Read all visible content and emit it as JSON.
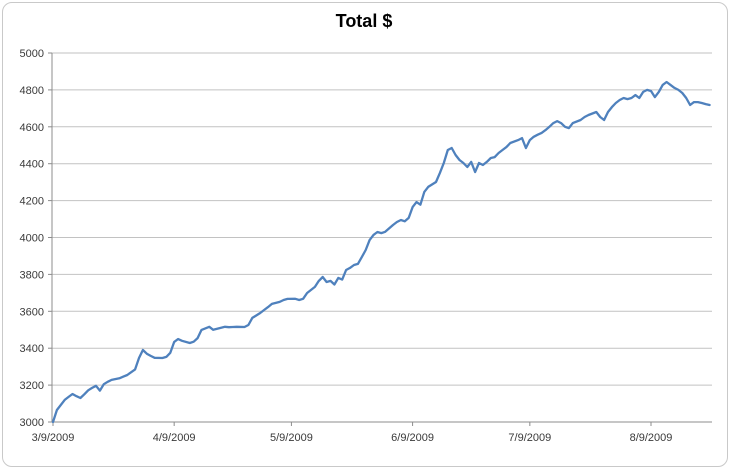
{
  "colors": {
    "line": "#4F81BD",
    "gridline": "#C2C2C2",
    "axis_line": "#8C8C8C",
    "tick_label": "#3A3A3A",
    "title": "#000000",
    "chart_border": "#C9C9C9",
    "background": "#FFFFFF"
  },
  "chart_data": {
    "type": "line",
    "title": "Total $",
    "xlabel": "",
    "ylabel": "",
    "grid": true,
    "legend": "none",
    "y_axis": {
      "min": 3000,
      "max": 5000,
      "step": 200,
      "tick_labels": [
        "3000",
        "3200",
        "3400",
        "3600",
        "3800",
        "4000",
        "4200",
        "4400",
        "4600",
        "4800",
        "5000"
      ]
    },
    "x_axis": {
      "epoch": "3/9/2009",
      "tick_labels": [
        "3/9/2009",
        "4/9/2009",
        "5/9/2009",
        "6/9/2009",
        "7/9/2009",
        "8/9/2009"
      ],
      "last_tick_date": "8/9/2009",
      "end_date": "8/24/2009"
    },
    "series": [
      {
        "name": "Total $",
        "color": "#4F81BD",
        "points": [
          [
            "3/9/2009",
            3000
          ],
          [
            "3/10/2009",
            3065
          ],
          [
            "3/12/2009",
            3120
          ],
          [
            "3/13/2009",
            3136
          ],
          [
            "3/14/2009",
            3152
          ],
          [
            "3/15/2009",
            3140
          ],
          [
            "3/16/2009",
            3130
          ],
          [
            "3/17/2009",
            3150
          ],
          [
            "3/18/2009",
            3172
          ],
          [
            "3/19/2009",
            3185
          ],
          [
            "3/20/2009",
            3196
          ],
          [
            "3/21/2009",
            3170
          ],
          [
            "3/22/2009",
            3205
          ],
          [
            "3/23/2009",
            3218
          ],
          [
            "3/24/2009",
            3228
          ],
          [
            "3/26/2009",
            3237
          ],
          [
            "3/27/2009",
            3246
          ],
          [
            "3/28/2009",
            3255
          ],
          [
            "3/30/2009",
            3285
          ],
          [
            "3/31/2009",
            3347
          ],
          [
            "4/1/2009",
            3390
          ],
          [
            "4/2/2009",
            3370
          ],
          [
            "4/3/2009",
            3358
          ],
          [
            "4/4/2009",
            3348
          ],
          [
            "4/6/2009",
            3347
          ],
          [
            "4/7/2009",
            3353
          ],
          [
            "4/8/2009",
            3375
          ],
          [
            "4/9/2009",
            3434
          ],
          [
            "4/10/2009",
            3450
          ],
          [
            "4/11/2009",
            3440
          ],
          [
            "4/13/2009",
            3428
          ],
          [
            "4/14/2009",
            3435
          ],
          [
            "4/15/2009",
            3455
          ],
          [
            "4/16/2009",
            3499
          ],
          [
            "4/18/2009",
            3516
          ],
          [
            "4/19/2009",
            3500
          ],
          [
            "4/20/2009",
            3505
          ],
          [
            "4/22/2009",
            3516
          ],
          [
            "4/23/2009",
            3514
          ],
          [
            "4/24/2009",
            3515
          ],
          [
            "4/25/2009",
            3516
          ],
          [
            "4/27/2009",
            3515
          ],
          [
            "4/28/2009",
            3526
          ],
          [
            "4/29/2009",
            3564
          ],
          [
            "5/1/2009",
            3591
          ],
          [
            "5/2/2009",
            3607
          ],
          [
            "5/3/2009",
            3623
          ],
          [
            "5/4/2009",
            3640
          ],
          [
            "5/6/2009",
            3651
          ],
          [
            "5/7/2009",
            3661
          ],
          [
            "5/8/2009",
            3667
          ],
          [
            "5/10/2009",
            3668
          ],
          [
            "5/11/2009",
            3661
          ],
          [
            "5/12/2009",
            3668
          ],
          [
            "5/13/2009",
            3699
          ],
          [
            "5/15/2009",
            3732
          ],
          [
            "5/16/2009",
            3765
          ],
          [
            "5/17/2009",
            3786
          ],
          [
            "5/18/2009",
            3759
          ],
          [
            "5/19/2009",
            3765
          ],
          [
            "5/20/2009",
            3745
          ],
          [
            "5/21/2009",
            3781
          ],
          [
            "5/22/2009",
            3772
          ],
          [
            "5/23/2009",
            3824
          ],
          [
            "5/24/2009",
            3835
          ],
          [
            "5/25/2009",
            3851
          ],
          [
            "5/26/2009",
            3857
          ],
          [
            "5/27/2009",
            3894
          ],
          [
            "5/28/2009",
            3932
          ],
          [
            "5/29/2009",
            3986
          ],
          [
            "5/30/2009",
            4014
          ],
          [
            "5/31/2009",
            4030
          ],
          [
            "6/1/2009",
            4024
          ],
          [
            "6/2/2009",
            4031
          ],
          [
            "6/4/2009",
            4068
          ],
          [
            "6/5/2009",
            4084
          ],
          [
            "6/6/2009",
            4095
          ],
          [
            "6/7/2009",
            4088
          ],
          [
            "6/8/2009",
            4106
          ],
          [
            "6/9/2009",
            4165
          ],
          [
            "6/10/2009",
            4192
          ],
          [
            "6/11/2009",
            4178
          ],
          [
            "6/12/2009",
            4247
          ],
          [
            "6/13/2009",
            4274
          ],
          [
            "6/15/2009",
            4301
          ],
          [
            "6/16/2009",
            4350
          ],
          [
            "6/17/2009",
            4404
          ],
          [
            "6/18/2009",
            4474
          ],
          [
            "6/19/2009",
            4485
          ],
          [
            "6/20/2009",
            4447
          ],
          [
            "6/21/2009",
            4420
          ],
          [
            "6/22/2009",
            4404
          ],
          [
            "6/23/2009",
            4382
          ],
          [
            "6/24/2009",
            4410
          ],
          [
            "6/25/2009",
            4355
          ],
          [
            "6/26/2009",
            4404
          ],
          [
            "6/27/2009",
            4393
          ],
          [
            "6/28/2009",
            4410
          ],
          [
            "6/29/2009",
            4431
          ],
          [
            "6/30/2009",
            4436
          ],
          [
            "7/1/2009",
            4458
          ],
          [
            "7/2/2009",
            4474
          ],
          [
            "7/3/2009",
            4490
          ],
          [
            "7/4/2009",
            4512
          ],
          [
            "7/6/2009",
            4528
          ],
          [
            "7/7/2009",
            4539
          ],
          [
            "7/8/2009",
            4485
          ],
          [
            "7/9/2009",
            4528
          ],
          [
            "7/10/2009",
            4546
          ],
          [
            "7/11/2009",
            4557
          ],
          [
            "7/12/2009",
            4567
          ],
          [
            "7/13/2009",
            4582
          ],
          [
            "7/14/2009",
            4600
          ],
          [
            "7/15/2009",
            4620
          ],
          [
            "7/16/2009",
            4631
          ],
          [
            "7/17/2009",
            4620
          ],
          [
            "7/18/2009",
            4600
          ],
          [
            "7/19/2009",
            4593
          ],
          [
            "7/20/2009",
            4620
          ],
          [
            "7/22/2009",
            4637
          ],
          [
            "7/23/2009",
            4653
          ],
          [
            "7/24/2009",
            4664
          ],
          [
            "7/26/2009",
            4680
          ],
          [
            "7/27/2009",
            4653
          ],
          [
            "7/28/2009",
            4637
          ],
          [
            "7/29/2009",
            4680
          ],
          [
            "7/30/2009",
            4707
          ],
          [
            "7/31/2009",
            4729
          ],
          [
            "8/1/2009",
            4745
          ],
          [
            "8/2/2009",
            4756
          ],
          [
            "8/3/2009",
            4750
          ],
          [
            "8/4/2009",
            4756
          ],
          [
            "8/5/2009",
            4772
          ],
          [
            "8/6/2009",
            4756
          ],
          [
            "8/7/2009",
            4789
          ],
          [
            "8/8/2009",
            4800
          ],
          [
            "8/9/2009",
            4794
          ],
          [
            "8/10/2009",
            4761
          ],
          [
            "8/11/2009",
            4789
          ],
          [
            "8/12/2009",
            4827
          ],
          [
            "8/13/2009",
            4843
          ],
          [
            "8/14/2009",
            4827
          ],
          [
            "8/15/2009",
            4811
          ],
          [
            "8/16/2009",
            4800
          ],
          [
            "8/17/2009",
            4783
          ],
          [
            "8/18/2009",
            4756
          ],
          [
            "8/19/2009",
            4718
          ],
          [
            "8/20/2009",
            4734
          ],
          [
            "8/21/2009",
            4734
          ],
          [
            "8/22/2009",
            4729
          ],
          [
            "8/23/2009",
            4723
          ],
          [
            "8/24/2009",
            4718
          ]
        ]
      }
    ]
  }
}
